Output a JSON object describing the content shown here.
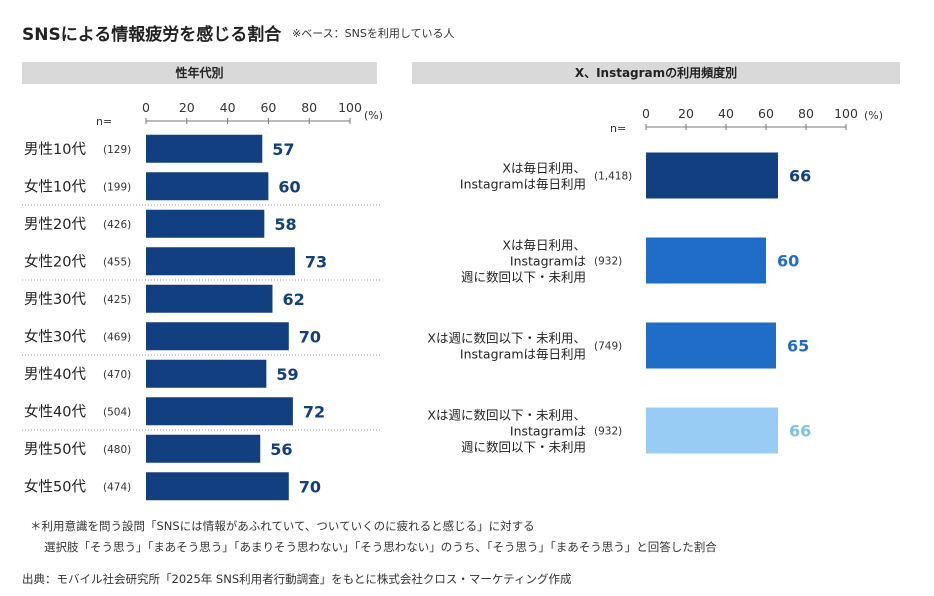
{
  "title": "SNSによる情報疲労を感じる割合",
  "base_note": "※ベース：SNSを利用している人",
  "footnote_line1": "＊利用意識を問う設問「SNSには情報があふれていて、ついていくのに疲れると感じる」に対する",
  "footnote_line2": "選択肢「そう思う」「まあそう思う」「あまりそう思わない」「そう思わない」のうち、「そう思う」「まあそう思う」と回答した割合",
  "source": "出典：モバイル社会研究所「2025年 SNS利用者行動調査」をもとに株式会社クロス・マーケティング作成",
  "chart_data": [
    {
      "type": "bar",
      "orientation": "horizontal",
      "title": "性年代別",
      "n_label": "n=",
      "unit": "(%)",
      "xlim": [
        0,
        100
      ],
      "ticks": [
        "0",
        "20",
        "40",
        "60",
        "80",
        "100"
      ],
      "categories": [
        "男性10代",
        "女性10代",
        "男性20代",
        "女性20代",
        "男性30代",
        "女性30代",
        "男性40代",
        "女性40代",
        "男性50代",
        "女性50代"
      ],
      "n": [
        "(129)",
        "(199)",
        "(426)",
        "(455)",
        "(425)",
        "(469)",
        "(470)",
        "(504)",
        "(480)",
        "(474)"
      ],
      "values": [
        57,
        60,
        58,
        73,
        62,
        70,
        59,
        72,
        56,
        70
      ],
      "bar_color": "#123f7f",
      "value_label_color": "#123f7f"
    },
    {
      "type": "bar",
      "orientation": "horizontal",
      "title": "X、Instagramの利用頻度別",
      "n_label": "n=",
      "unit": "(%)",
      "xlim": [
        0,
        100
      ],
      "ticks": [
        "0",
        "20",
        "40",
        "60",
        "80",
        "100"
      ],
      "categories": [
        [
          "Xは毎日利用、",
          "Instagramは毎日利用"
        ],
        [
          "Xは毎日利用、",
          "Instagramは",
          "週に数回以下・未利用"
        ],
        [
          "Xは週に数回以下・未利用、",
          "Instagramは毎日利用"
        ],
        [
          "Xは週に数回以下・未利用、",
          "Instagramは",
          "週に数回以下・未利用"
        ]
      ],
      "n": [
        "(1,418)",
        "(932)",
        "(749)",
        "(932)"
      ],
      "values": [
        66,
        60,
        65,
        66
      ],
      "bar_colors": [
        "#123f7f",
        "#1f6dc6",
        "#1f6dc6",
        "#99ccf5"
      ],
      "value_label_colors": [
        "#123f7f",
        "#1f6dc6",
        "#1f6dc6",
        "#7fc0ee"
      ]
    }
  ]
}
